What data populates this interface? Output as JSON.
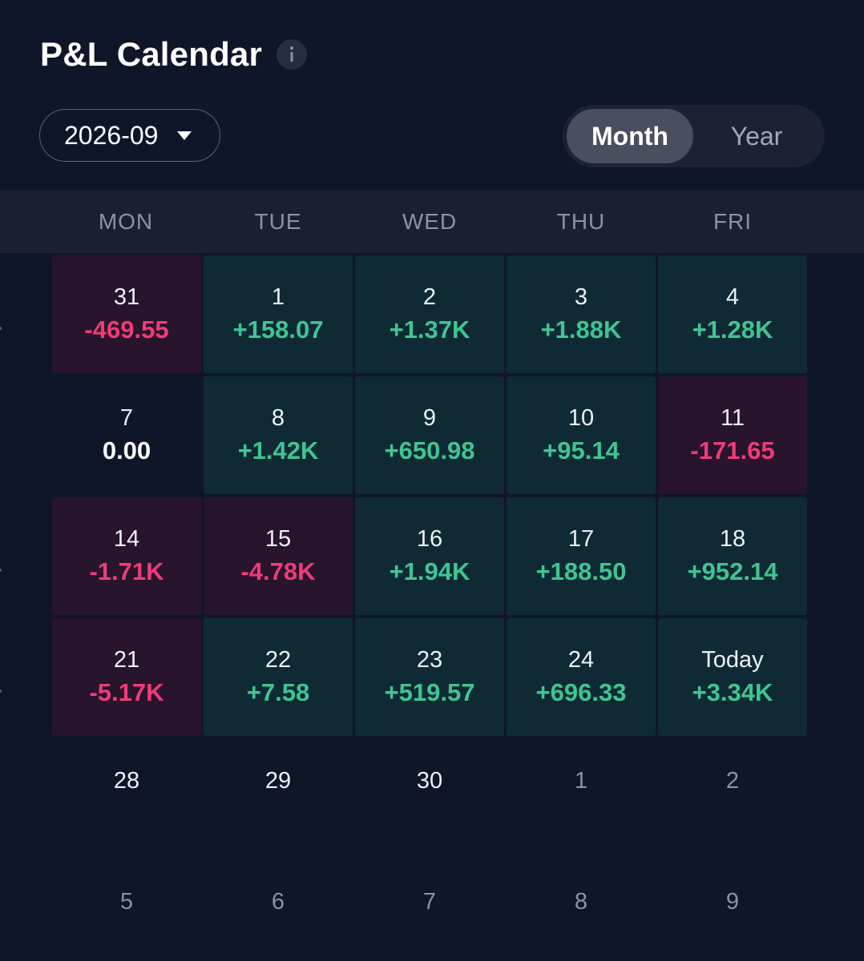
{
  "header": {
    "title": "P&L Calendar"
  },
  "month_selector": {
    "value": "2026-09"
  },
  "view_toggle": {
    "options": [
      "Month",
      "Year"
    ],
    "active": "Month"
  },
  "weekdays": [
    "MON",
    "TUE",
    "WED",
    "THU",
    "FRI"
  ],
  "weeks": [
    [
      {
        "day": "31",
        "pnl": "-469.55",
        "state": "neg"
      },
      {
        "day": "1",
        "pnl": "+158.07",
        "state": "pos"
      },
      {
        "day": "2",
        "pnl": "+1.37K",
        "state": "pos"
      },
      {
        "day": "3",
        "pnl": "+1.88K",
        "state": "pos"
      },
      {
        "day": "4",
        "pnl": "+1.28K",
        "state": "pos"
      }
    ],
    [
      {
        "day": "7",
        "pnl": "0.00",
        "state": "zero"
      },
      {
        "day": "8",
        "pnl": "+1.42K",
        "state": "pos"
      },
      {
        "day": "9",
        "pnl": "+650.98",
        "state": "pos"
      },
      {
        "day": "10",
        "pnl": "+95.14",
        "state": "pos"
      },
      {
        "day": "11",
        "pnl": "-171.65",
        "state": "neg"
      }
    ],
    [
      {
        "day": "14",
        "pnl": "-1.71K",
        "state": "neg"
      },
      {
        "day": "15",
        "pnl": "-4.78K",
        "state": "neg"
      },
      {
        "day": "16",
        "pnl": "+1.94K",
        "state": "pos"
      },
      {
        "day": "17",
        "pnl": "+188.50",
        "state": "pos"
      },
      {
        "day": "18",
        "pnl": "+952.14",
        "state": "pos"
      }
    ],
    [
      {
        "day": "21",
        "pnl": "-5.17K",
        "state": "neg"
      },
      {
        "day": "22",
        "pnl": "+7.58",
        "state": "pos"
      },
      {
        "day": "23",
        "pnl": "+519.57",
        "state": "pos"
      },
      {
        "day": "24",
        "pnl": "+696.33",
        "state": "pos"
      },
      {
        "day": "Today",
        "pnl": "+3.34K",
        "state": "pos"
      }
    ],
    [
      {
        "day": "28",
        "pnl": "",
        "state": "empty"
      },
      {
        "day": "29",
        "pnl": "",
        "state": "empty"
      },
      {
        "day": "30",
        "pnl": "",
        "state": "empty"
      },
      {
        "day": "1",
        "pnl": "",
        "state": "empty",
        "outside_month": true
      },
      {
        "day": "2",
        "pnl": "",
        "state": "empty",
        "outside_month": true
      }
    ],
    [
      {
        "day": "5",
        "pnl": "",
        "state": "empty",
        "outside_month": true
      },
      {
        "day": "6",
        "pnl": "",
        "state": "empty",
        "outside_month": true
      },
      {
        "day": "7",
        "pnl": "",
        "state": "empty",
        "outside_month": true
      },
      {
        "day": "8",
        "pnl": "",
        "state": "empty",
        "outside_month": true
      },
      {
        "day": "9",
        "pnl": "",
        "state": "empty",
        "outside_month": true
      }
    ]
  ],
  "colors": {
    "background": "#10162a",
    "positive_bg": "#0f2a35",
    "negative_bg": "#28142c",
    "positive_text": "#3fc592",
    "negative_text": "#ee3c77"
  },
  "icons": {
    "info": "info-icon",
    "dropdown": "caret-down-icon"
  }
}
